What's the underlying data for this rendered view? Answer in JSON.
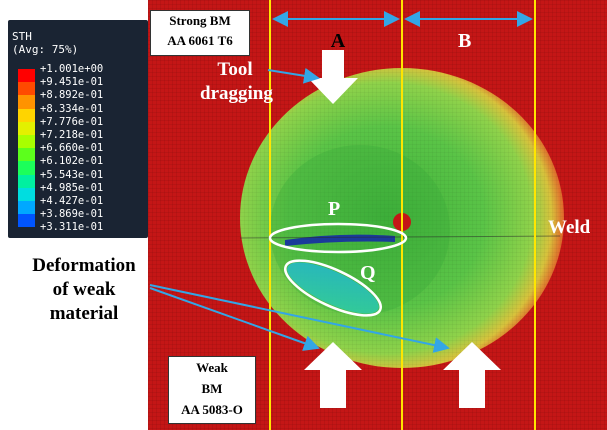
{
  "legend": {
    "title_line1": "STH",
    "title_line2": "(Avg: 75%)",
    "values": [
      "+1.001e+00",
      "+9.451e-01",
      "+8.892e-01",
      "+8.334e-01",
      "+7.776e-01",
      "+7.218e-01",
      "+6.660e-01",
      "+6.102e-01",
      "+5.543e-01",
      "+4.985e-01",
      "+4.427e-01",
      "+3.869e-01",
      "+3.311e-01"
    ],
    "colors": [
      "#ff0000",
      "#ff4a00",
      "#ff9300",
      "#ffd400",
      "#e3f000",
      "#a8ff00",
      "#5cff1c",
      "#1cff5a",
      "#00f0a0",
      "#00dde0",
      "#00a8ff",
      "#0055ff",
      "#0000e8"
    ]
  },
  "labels": {
    "strong_bm_line1": "Strong BM",
    "strong_bm_line2": "AA 6061 T6",
    "zone_a": "A",
    "zone_b": "B",
    "tool_dragging_line1": "Tool",
    "tool_dragging_line2": "dragging",
    "region_p": "P",
    "region_q": "Q",
    "weld": "Weld",
    "deformation_line1": "Deformation",
    "deformation_line2": "of weak",
    "deformation_line3": "material",
    "weak_bm_line1": "Weak",
    "weak_bm_line2": "BM",
    "weak_bm_line3": "AA 5083-O"
  },
  "colors": {
    "plate_red": "#c41616",
    "disc_green": "#58c043",
    "guide_yellow": "#ffe600",
    "dimension_blue": "#33a6e6",
    "arrow_white": "#ffffff"
  }
}
